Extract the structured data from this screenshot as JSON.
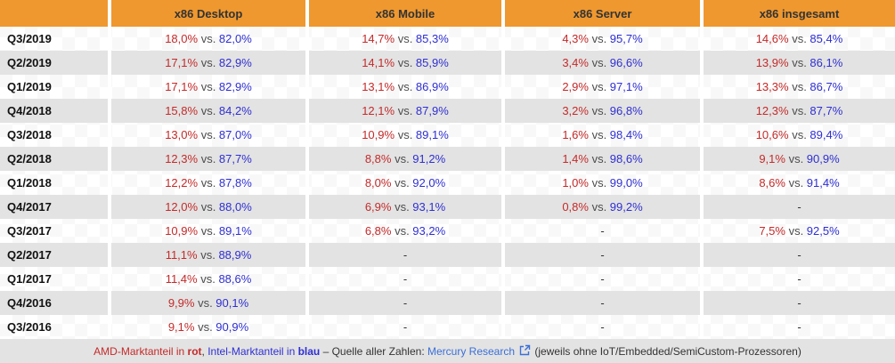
{
  "table": {
    "columns": [
      "x86 Desktop",
      "x86 Mobile",
      "x86 Server",
      "x86 insgesamt"
    ],
    "vs_label": "vs.",
    "empty_label": "-",
    "rows": [
      {
        "quarter": "Q3/2019",
        "cells": [
          {
            "amd": "18,0%",
            "intel": "82,0%"
          },
          {
            "amd": "14,7%",
            "intel": "85,3%"
          },
          {
            "amd": "4,3%",
            "intel": "95,7%"
          },
          {
            "amd": "14,6%",
            "intel": "85,4%"
          }
        ]
      },
      {
        "quarter": "Q2/2019",
        "cells": [
          {
            "amd": "17,1%",
            "intel": "82,9%"
          },
          {
            "amd": "14,1%",
            "intel": "85,9%"
          },
          {
            "amd": "3,4%",
            "intel": "96,6%"
          },
          {
            "amd": "13,9%",
            "intel": "86,1%"
          }
        ]
      },
      {
        "quarter": "Q1/2019",
        "cells": [
          {
            "amd": "17,1%",
            "intel": "82,9%"
          },
          {
            "amd": "13,1%",
            "intel": "86,9%"
          },
          {
            "amd": "2,9%",
            "intel": "97,1%"
          },
          {
            "amd": "13,3%",
            "intel": "86,7%"
          }
        ]
      },
      {
        "quarter": "Q4/2018",
        "cells": [
          {
            "amd": "15,8%",
            "intel": "84,2%"
          },
          {
            "amd": "12,1%",
            "intel": "87,9%"
          },
          {
            "amd": "3,2%",
            "intel": "96,8%"
          },
          {
            "amd": "12,3%",
            "intel": "87,7%"
          }
        ]
      },
      {
        "quarter": "Q3/2018",
        "cells": [
          {
            "amd": "13,0%",
            "intel": "87,0%"
          },
          {
            "amd": "10,9%",
            "intel": "89,1%"
          },
          {
            "amd": "1,6%",
            "intel": "98,4%"
          },
          {
            "amd": "10,6%",
            "intel": "89,4%"
          }
        ]
      },
      {
        "quarter": "Q2/2018",
        "cells": [
          {
            "amd": "12,3%",
            "intel": "87,7%"
          },
          {
            "amd": "8,8%",
            "intel": "91,2%"
          },
          {
            "amd": "1,4%",
            "intel": "98,6%"
          },
          {
            "amd": "9,1%",
            "intel": "90,9%"
          }
        ]
      },
      {
        "quarter": "Q1/2018",
        "cells": [
          {
            "amd": "12,2%",
            "intel": "87,8%"
          },
          {
            "amd": "8,0%",
            "intel": "92,0%"
          },
          {
            "amd": "1,0%",
            "intel": "99,0%"
          },
          {
            "amd": "8,6%",
            "intel": "91,4%"
          }
        ]
      },
      {
        "quarter": "Q4/2017",
        "cells": [
          {
            "amd": "12,0%",
            "intel": "88,0%"
          },
          {
            "amd": "6,9%",
            "intel": "93,1%"
          },
          {
            "amd": "0,8%",
            "intel": "99,2%"
          },
          null
        ]
      },
      {
        "quarter": "Q3/2017",
        "cells": [
          {
            "amd": "10,9%",
            "intel": "89,1%"
          },
          {
            "amd": "6,8%",
            "intel": "93,2%"
          },
          null,
          {
            "amd": "7,5%",
            "intel": "92,5%"
          }
        ]
      },
      {
        "quarter": "Q2/2017",
        "cells": [
          {
            "amd": "11,1%",
            "intel": "88,9%"
          },
          null,
          null,
          null
        ]
      },
      {
        "quarter": "Q1/2017",
        "cells": [
          {
            "amd": "11,4%",
            "intel": "88,6%"
          },
          null,
          null,
          null
        ]
      },
      {
        "quarter": "Q4/2016",
        "cells": [
          {
            "amd": "9,9%",
            "intel": "90,1%"
          },
          null,
          null,
          null
        ]
      },
      {
        "quarter": "Q3/2016",
        "cells": [
          {
            "amd": "9,1%",
            "intel": "90,9%"
          },
          null,
          null,
          null
        ]
      }
    ]
  },
  "footer": {
    "amd_text": "AMD-Marktanteil in ",
    "amd_bold": "rot",
    "separator": ", ",
    "intel_text": "Intel-Marktanteil in ",
    "intel_bold": "blau",
    "middle": " – Quelle aller Zahlen: ",
    "link_label": "Mercury Research",
    "suffix": " (jeweils ohne IoT/Embedded/SemiCustom-Prozessoren)"
  },
  "colors": {
    "header_background": "#ef982f",
    "header_text": "#333333",
    "stripe_gray": "#e3e3e3",
    "amd_red": "#c52a2a",
    "intel_blue": "#2f2fd3",
    "link_blue": "#3b6fd8"
  },
  "icons": {
    "external_link": "external-link-icon"
  }
}
